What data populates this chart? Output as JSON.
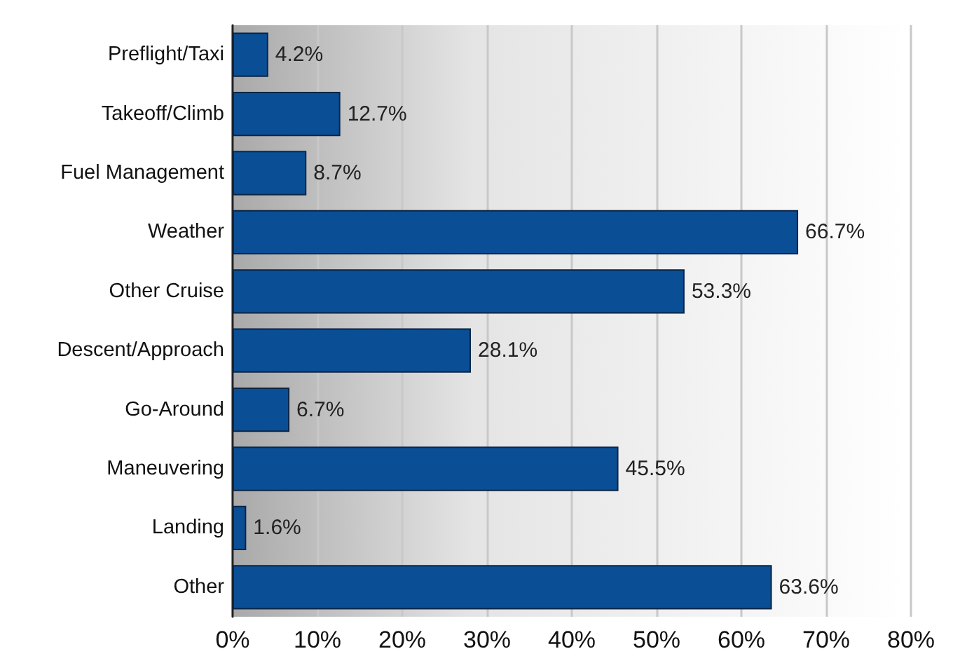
{
  "chart_data": {
    "type": "bar",
    "orientation": "horizontal",
    "categories": [
      "Preflight/Taxi",
      "Takeoff/Climb",
      "Fuel Management",
      "Weather",
      "Other Cruise",
      "Descent/Approach",
      "Go-Around",
      "Maneuvering",
      "Landing",
      "Other"
    ],
    "values": [
      4.2,
      12.7,
      8.7,
      66.7,
      53.3,
      28.1,
      6.7,
      45.5,
      1.6,
      63.6
    ],
    "value_labels": [
      "4.2%",
      "12.7%",
      "8.7%",
      "66.7%",
      "53.3%",
      "28.1%",
      "6.7%",
      "45.5%",
      "1.6%",
      "63.6%"
    ],
    "color": "#0a4f96",
    "xlim": [
      0,
      80
    ],
    "xticks": [
      {
        "value": 0,
        "label": "0%"
      },
      {
        "value": 10,
        "label": "10%"
      },
      {
        "value": 20,
        "label": "20%"
      },
      {
        "value": 30,
        "label": "30%"
      },
      {
        "value": 40,
        "label": "40%"
      },
      {
        "value": 50,
        "label": "50%"
      },
      {
        "value": 60,
        "label": "60%"
      },
      {
        "value": 70,
        "label": "70%"
      },
      {
        "value": 80,
        "label": "80%"
      }
    ],
    "grid": "x"
  }
}
